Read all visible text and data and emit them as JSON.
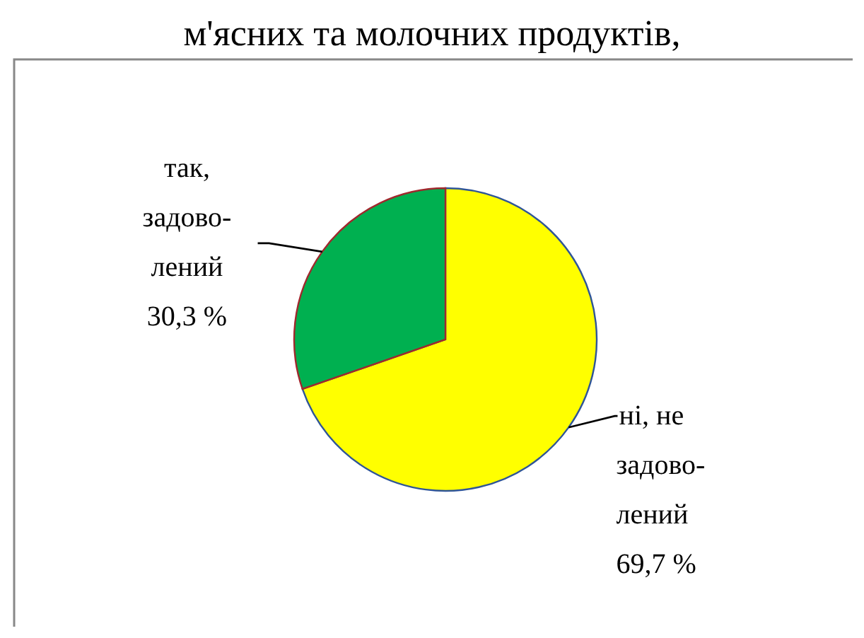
{
  "chart_data": {
    "type": "pie",
    "title": "м'ясних та молочних продуктів,",
    "categories": [
      "ні, не задово-лений",
      "так, задово-лений"
    ],
    "values": [
      69.7,
      30.3
    ],
    "colors": [
      "#ffff00",
      "#00b050"
    ],
    "value_labels": [
      "69,7 %",
      "30,3 %"
    ]
  }
}
